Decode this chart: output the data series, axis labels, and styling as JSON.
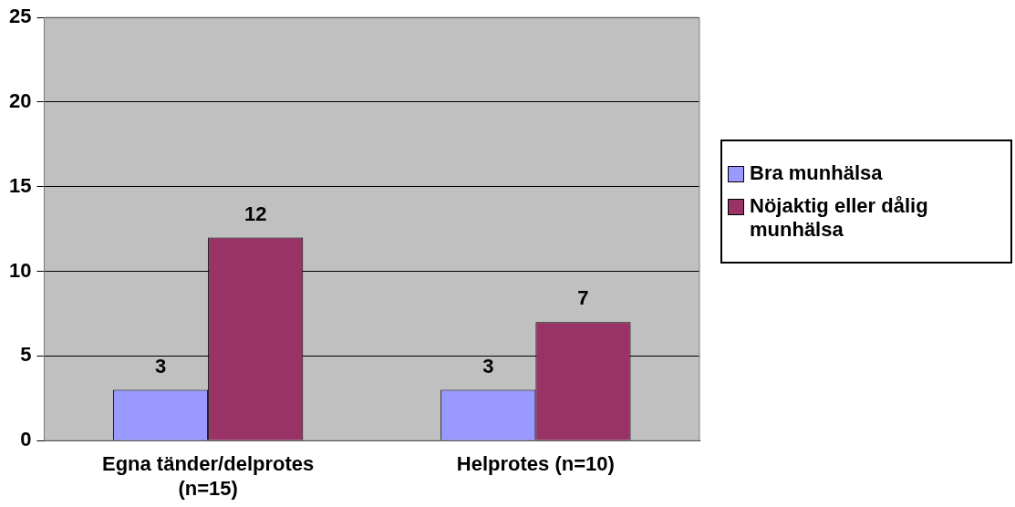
{
  "chart_data": {
    "type": "bar",
    "categories": [
      "Egna tänder/delprotes (n=15)",
      "Helprotes (n=10)"
    ],
    "series": [
      {
        "name": "Bra munhälsa",
        "color": "#9999ff",
        "values": [
          3,
          3
        ]
      },
      {
        "name": "Nöjaktig eller dålig munhälsa",
        "color": "#993366",
        "values": [
          12,
          7
        ]
      }
    ],
    "ylim": [
      0,
      25
    ],
    "yticks": [
      0,
      5,
      10,
      15,
      20,
      25
    ],
    "grid": "y",
    "legend": "right",
    "data_labels": true
  }
}
